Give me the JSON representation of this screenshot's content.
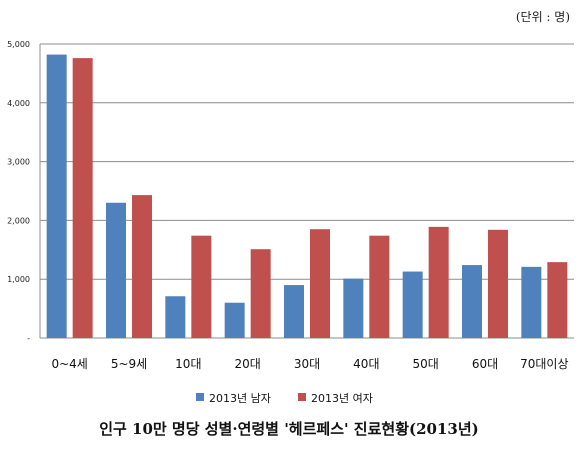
{
  "unit_label": "(단위 : 명)",
  "caption": "인구 10만 명당 성별·연령별 '헤르페스' 진료현황(2013년)",
  "colors": {
    "male": "#4F81BD",
    "female": "#C0504D",
    "grid": "#8c8c8c",
    "axis": "#8c8c8c"
  },
  "chart_data": {
    "type": "bar",
    "title": "",
    "xlabel": "",
    "ylabel": "",
    "categories": [
      "0~4세",
      "5~9세",
      "10대",
      "20대",
      "30대",
      "40대",
      "50대",
      "60대",
      "70대이상"
    ],
    "series": [
      {
        "name": "2013년 남자",
        "values": [
          4820,
          2300,
          710,
          600,
          900,
          1010,
          1130,
          1240,
          1210
        ]
      },
      {
        "name": "2013년 여자",
        "values": [
          4760,
          2430,
          1740,
          1510,
          1850,
          1740,
          1890,
          1840,
          1290
        ]
      }
    ],
    "ylim": [
      0,
      5000
    ],
    "yticks": [
      0,
      1000,
      2000,
      3000,
      4000,
      5000
    ],
    "ytick_labels": [
      "-",
      "1,000",
      "2,000",
      "3,000",
      "4,000",
      "5,000"
    ],
    "grid": true,
    "legend_position": "bottom"
  }
}
